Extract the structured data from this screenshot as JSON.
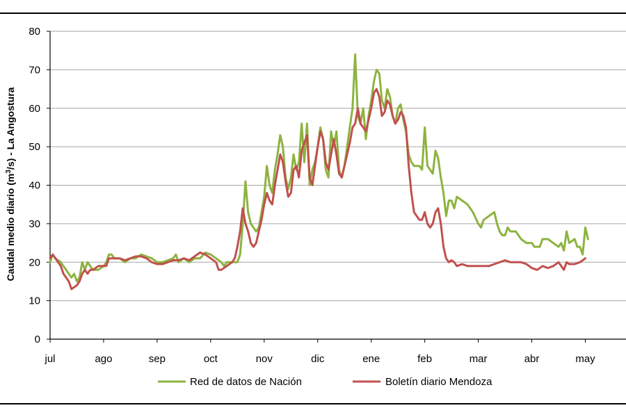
{
  "chart_data": {
    "type": "line",
    "title": "",
    "ylabel": "Caudal medio diario (m³/s) - La Angostura",
    "ylabel_parts": [
      "Caudal medio diario (m",
      "3",
      "/s) - La Angostura"
    ],
    "ylim": [
      0,
      80
    ],
    "yticks": [
      0,
      10,
      20,
      30,
      40,
      50,
      60,
      70,
      80
    ],
    "xlim": [
      0,
      10.5
    ],
    "xticks": [
      "jul",
      "ago",
      "sep",
      "oct",
      "nov",
      "dic",
      "ene",
      "feb",
      "mar",
      "abr",
      "may"
    ],
    "grid": true,
    "legend_position": "bottom",
    "series": [
      {
        "name": "Red de datos de Nación",
        "color": "#8db33f",
        "points": [
          [
            0,
            20
          ],
          [
            0.05,
            22
          ],
          [
            0.1,
            21
          ],
          [
            0.2,
            20
          ],
          [
            0.25,
            19
          ],
          [
            0.35,
            17
          ],
          [
            0.4,
            16
          ],
          [
            0.45,
            17
          ],
          [
            0.5,
            15
          ],
          [
            0.55,
            16
          ],
          [
            0.6,
            20
          ],
          [
            0.65,
            18
          ],
          [
            0.7,
            20
          ],
          [
            0.8,
            18
          ],
          [
            0.9,
            18
          ],
          [
            1.0,
            19
          ],
          [
            1.05,
            20
          ],
          [
            1.1,
            22
          ],
          [
            1.15,
            22
          ],
          [
            1.2,
            21
          ],
          [
            1.3,
            21
          ],
          [
            1.4,
            20
          ],
          [
            1.5,
            21
          ],
          [
            1.6,
            21
          ],
          [
            1.7,
            22
          ],
          [
            1.8,
            21.5
          ],
          [
            1.9,
            21
          ],
          [
            2.0,
            20
          ],
          [
            2.1,
            20
          ],
          [
            2.2,
            20.5
          ],
          [
            2.3,
            21
          ],
          [
            2.35,
            22
          ],
          [
            2.4,
            20
          ],
          [
            2.5,
            21
          ],
          [
            2.6,
            20
          ],
          [
            2.7,
            21
          ],
          [
            2.8,
            21
          ],
          [
            2.9,
            22.5
          ],
          [
            3.0,
            22
          ],
          [
            3.1,
            21
          ],
          [
            3.2,
            20
          ],
          [
            3.25,
            19
          ],
          [
            3.3,
            20
          ],
          [
            3.4,
            20
          ],
          [
            3.5,
            20
          ],
          [
            3.55,
            22
          ],
          [
            3.6,
            30
          ],
          [
            3.65,
            41
          ],
          [
            3.7,
            33
          ],
          [
            3.75,
            30
          ],
          [
            3.8,
            29
          ],
          [
            3.85,
            28
          ],
          [
            3.9,
            29
          ],
          [
            3.95,
            33
          ],
          [
            4.0,
            37
          ],
          [
            4.05,
            45
          ],
          [
            4.1,
            40
          ],
          [
            4.15,
            38
          ],
          [
            4.2,
            44
          ],
          [
            4.25,
            48
          ],
          [
            4.3,
            53
          ],
          [
            4.35,
            50
          ],
          [
            4.4,
            42
          ],
          [
            4.45,
            39
          ],
          [
            4.5,
            42
          ],
          [
            4.55,
            48
          ],
          [
            4.6,
            44
          ],
          [
            4.65,
            46
          ],
          [
            4.7,
            56
          ],
          [
            4.75,
            46
          ],
          [
            4.8,
            56
          ],
          [
            4.85,
            40
          ],
          [
            4.9,
            44
          ],
          [
            4.95,
            46
          ],
          [
            5.0,
            50
          ],
          [
            5.05,
            55
          ],
          [
            5.1,
            52
          ],
          [
            5.15,
            44
          ],
          [
            5.2,
            42
          ],
          [
            5.25,
            54
          ],
          [
            5.3,
            50
          ],
          [
            5.35,
            54
          ],
          [
            5.4,
            44
          ],
          [
            5.45,
            42
          ],
          [
            5.5,
            45
          ],
          [
            5.55,
            50
          ],
          [
            5.6,
            55
          ],
          [
            5.65,
            60
          ],
          [
            5.7,
            74
          ],
          [
            5.75,
            58
          ],
          [
            5.8,
            56
          ],
          [
            5.85,
            60
          ],
          [
            5.9,
            52
          ],
          [
            5.95,
            58
          ],
          [
            6.0,
            62
          ],
          [
            6.05,
            67
          ],
          [
            6.1,
            70
          ],
          [
            6.15,
            69
          ],
          [
            6.2,
            62
          ],
          [
            6.25,
            60
          ],
          [
            6.3,
            65
          ],
          [
            6.35,
            63
          ],
          [
            6.4,
            58
          ],
          [
            6.45,
            56
          ],
          [
            6.5,
            60
          ],
          [
            6.55,
            61
          ],
          [
            6.6,
            57
          ],
          [
            6.65,
            54
          ],
          [
            6.7,
            48
          ],
          [
            6.75,
            46
          ],
          [
            6.8,
            45
          ],
          [
            6.85,
            45
          ],
          [
            6.9,
            45
          ],
          [
            6.95,
            44
          ],
          [
            7.0,
            55
          ],
          [
            7.05,
            45
          ],
          [
            7.1,
            44
          ],
          [
            7.15,
            43
          ],
          [
            7.2,
            49
          ],
          [
            7.25,
            47
          ],
          [
            7.3,
            42
          ],
          [
            7.35,
            38
          ],
          [
            7.4,
            32
          ],
          [
            7.45,
            36
          ],
          [
            7.5,
            36
          ],
          [
            7.55,
            34
          ],
          [
            7.6,
            37
          ],
          [
            7.7,
            36
          ],
          [
            7.8,
            35
          ],
          [
            7.9,
            33
          ],
          [
            8.0,
            30
          ],
          [
            8.05,
            29
          ],
          [
            8.1,
            31
          ],
          [
            8.2,
            32
          ],
          [
            8.3,
            33
          ],
          [
            8.35,
            30
          ],
          [
            8.4,
            28
          ],
          [
            8.45,
            27
          ],
          [
            8.5,
            27
          ],
          [
            8.55,
            29
          ],
          [
            8.6,
            28
          ],
          [
            8.7,
            28
          ],
          [
            8.8,
            26
          ],
          [
            8.9,
            25
          ],
          [
            9.0,
            25
          ],
          [
            9.05,
            24
          ],
          [
            9.1,
            24
          ],
          [
            9.15,
            24
          ],
          [
            9.2,
            26
          ],
          [
            9.3,
            26
          ],
          [
            9.4,
            25
          ],
          [
            9.5,
            24
          ],
          [
            9.55,
            25
          ],
          [
            9.6,
            23
          ],
          [
            9.65,
            28
          ],
          [
            9.7,
            25
          ],
          [
            9.8,
            26
          ],
          [
            9.85,
            24
          ],
          [
            9.9,
            24
          ],
          [
            9.95,
            22
          ],
          [
            10.0,
            29
          ],
          [
            10.05,
            26
          ]
        ]
      },
      {
        "name": "Boletín diario Mendoza",
        "color": "#c0504d",
        "points": [
          [
            0,
            21
          ],
          [
            0.05,
            22
          ],
          [
            0.1,
            21
          ],
          [
            0.15,
            20
          ],
          [
            0.2,
            19
          ],
          [
            0.25,
            17
          ],
          [
            0.3,
            16
          ],
          [
            0.35,
            15
          ],
          [
            0.4,
            13
          ],
          [
            0.45,
            13.5
          ],
          [
            0.5,
            14
          ],
          [
            0.55,
            15
          ],
          [
            0.6,
            17
          ],
          [
            0.65,
            18
          ],
          [
            0.7,
            17
          ],
          [
            0.75,
            18
          ],
          [
            0.8,
            18
          ],
          [
            0.9,
            19
          ],
          [
            1.0,
            19
          ],
          [
            1.05,
            19
          ],
          [
            1.1,
            21
          ],
          [
            1.15,
            21
          ],
          [
            1.2,
            21
          ],
          [
            1.3,
            21
          ],
          [
            1.4,
            20.5
          ],
          [
            1.5,
            21
          ],
          [
            1.6,
            21.5
          ],
          [
            1.7,
            21.5
          ],
          [
            1.8,
            21
          ],
          [
            1.9,
            20
          ],
          [
            2.0,
            19.5
          ],
          [
            2.1,
            19.5
          ],
          [
            2.2,
            20
          ],
          [
            2.3,
            20.5
          ],
          [
            2.4,
            20.5
          ],
          [
            2.5,
            21
          ],
          [
            2.6,
            20.5
          ],
          [
            2.7,
            21.5
          ],
          [
            2.8,
            22.5
          ],
          [
            2.9,
            22
          ],
          [
            3.0,
            21
          ],
          [
            3.1,
            20
          ],
          [
            3.15,
            18
          ],
          [
            3.2,
            18
          ],
          [
            3.3,
            19
          ],
          [
            3.4,
            20
          ],
          [
            3.45,
            21
          ],
          [
            3.5,
            24
          ],
          [
            3.55,
            28
          ],
          [
            3.6,
            34
          ],
          [
            3.65,
            30
          ],
          [
            3.7,
            28
          ],
          [
            3.75,
            25
          ],
          [
            3.8,
            24
          ],
          [
            3.85,
            25
          ],
          [
            3.9,
            28
          ],
          [
            3.95,
            31
          ],
          [
            4.0,
            35
          ],
          [
            4.05,
            38
          ],
          [
            4.1,
            36
          ],
          [
            4.15,
            35
          ],
          [
            4.2,
            40
          ],
          [
            4.25,
            44
          ],
          [
            4.3,
            48
          ],
          [
            4.35,
            46
          ],
          [
            4.4,
            41
          ],
          [
            4.45,
            37
          ],
          [
            4.5,
            38
          ],
          [
            4.55,
            44
          ],
          [
            4.6,
            45
          ],
          [
            4.65,
            42
          ],
          [
            4.7,
            49
          ],
          [
            4.75,
            51
          ],
          [
            4.8,
            53
          ],
          [
            4.85,
            42
          ],
          [
            4.9,
            40
          ],
          [
            4.95,
            45
          ],
          [
            5.0,
            50
          ],
          [
            5.05,
            54
          ],
          [
            5.1,
            52
          ],
          [
            5.15,
            46
          ],
          [
            5.2,
            44
          ],
          [
            5.25,
            48
          ],
          [
            5.3,
            52
          ],
          [
            5.35,
            48
          ],
          [
            5.4,
            43
          ],
          [
            5.45,
            42
          ],
          [
            5.5,
            45
          ],
          [
            5.55,
            48
          ],
          [
            5.6,
            51
          ],
          [
            5.65,
            55
          ],
          [
            5.7,
            56
          ],
          [
            5.75,
            60
          ],
          [
            5.8,
            56
          ],
          [
            5.85,
            55
          ],
          [
            5.9,
            54
          ],
          [
            5.95,
            57
          ],
          [
            6.0,
            60
          ],
          [
            6.05,
            64
          ],
          [
            6.1,
            65
          ],
          [
            6.15,
            63
          ],
          [
            6.2,
            58
          ],
          [
            6.25,
            59
          ],
          [
            6.3,
            62
          ],
          [
            6.35,
            61
          ],
          [
            6.4,
            58
          ],
          [
            6.45,
            56
          ],
          [
            6.5,
            57
          ],
          [
            6.55,
            59
          ],
          [
            6.6,
            58
          ],
          [
            6.65,
            55
          ],
          [
            6.7,
            45
          ],
          [
            6.75,
            38
          ],
          [
            6.8,
            33
          ],
          [
            6.85,
            32
          ],
          [
            6.9,
            31
          ],
          [
            6.95,
            31
          ],
          [
            7.0,
            33
          ],
          [
            7.05,
            30
          ],
          [
            7.1,
            29
          ],
          [
            7.15,
            30
          ],
          [
            7.2,
            33
          ],
          [
            7.25,
            34
          ],
          [
            7.3,
            30
          ],
          [
            7.35,
            24
          ],
          [
            7.4,
            21
          ],
          [
            7.45,
            20
          ],
          [
            7.5,
            20.5
          ],
          [
            7.55,
            20
          ],
          [
            7.6,
            19
          ],
          [
            7.7,
            19.5
          ],
          [
            7.8,
            19
          ],
          [
            7.9,
            19
          ],
          [
            8.0,
            19
          ],
          [
            8.1,
            19
          ],
          [
            8.2,
            19
          ],
          [
            8.3,
            19.5
          ],
          [
            8.4,
            20
          ],
          [
            8.5,
            20.5
          ],
          [
            8.6,
            20
          ],
          [
            8.7,
            20
          ],
          [
            8.8,
            20
          ],
          [
            8.9,
            19.5
          ],
          [
            9.0,
            18.5
          ],
          [
            9.1,
            18
          ],
          [
            9.2,
            19
          ],
          [
            9.3,
            18.5
          ],
          [
            9.4,
            19
          ],
          [
            9.5,
            20
          ],
          [
            9.55,
            19
          ],
          [
            9.6,
            18
          ],
          [
            9.65,
            20
          ],
          [
            9.7,
            19.5
          ],
          [
            9.8,
            19.5
          ],
          [
            9.9,
            20
          ],
          [
            9.95,
            20.5
          ],
          [
            10.0,
            21
          ]
        ]
      }
    ]
  }
}
